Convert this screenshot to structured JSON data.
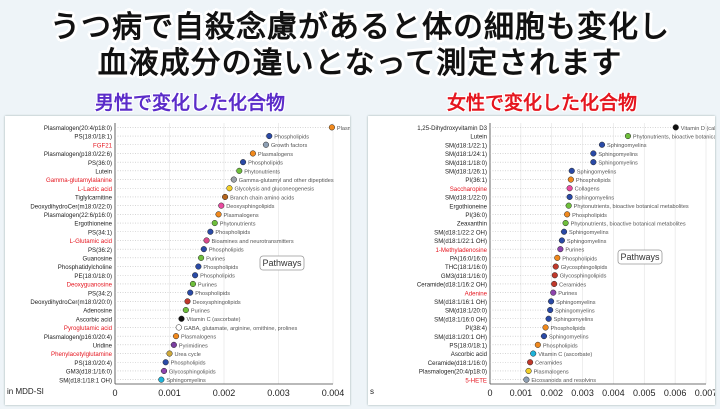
{
  "headline": {
    "line1": "うつ病で自殺念慮があると体の細胞も変化し",
    "line2": "血液成分の違いとなって測定されます"
  },
  "colors": {
    "male_title": "#5b2cc9",
    "female_title": "#e5161f",
    "highlight_label": "#e5161f"
  },
  "chart_data": [
    {
      "type": "scatter",
      "title": "男性で変化した化合物",
      "legend_box": "Pathways",
      "axis_label_partial": "in MDD-SI",
      "xlim": [
        0,
        0.004
      ],
      "xticks": [
        "0",
        "0.001",
        "0.002",
        "0.003",
        "0.004"
      ],
      "points": [
        {
          "name": "Plasmalogen(20:4/p18:0)",
          "value": 0.00398,
          "color": "#f0891e",
          "pathway": "Plasmalogens",
          "highlight": false
        },
        {
          "name": "PS(18:0/18:1)",
          "value": 0.00283,
          "color": "#2a4aa6",
          "pathway": "Phospholipids",
          "highlight": false
        },
        {
          "name": "FGF21",
          "value": 0.00277,
          "color": "#8fa0b4",
          "pathway": "Growth factors",
          "highlight": true
        },
        {
          "name": "Plasmalogen(p18:0/22:6)",
          "value": 0.00253,
          "color": "#f0891e",
          "pathway": "Plasmalogens",
          "highlight": false
        },
        {
          "name": "PS(36:0)",
          "value": 0.00235,
          "color": "#2a4aa6",
          "pathway": "Phospholipids",
          "highlight": false
        },
        {
          "name": "Lutein",
          "value": 0.00228,
          "color": "#6fbf3c",
          "pathway": "Phytonutrients",
          "highlight": false
        },
        {
          "name": "Gamma-glutamylalanine",
          "value": 0.00218,
          "color": "#9aa0a8",
          "pathway": "Gamma-glutamyl and other dipeptides",
          "highlight": true
        },
        {
          "name": "L-Lactic acid",
          "value": 0.0021,
          "color": "#f2cf2a",
          "pathway": "Glycolysis and gluconeogenesis",
          "highlight": true
        },
        {
          "name": "Tiglylcarnitine",
          "value": 0.00202,
          "color": "#b5651d",
          "pathway": "Branch chain amino acids",
          "highlight": false
        },
        {
          "name": "DeoxydihydroCer(m18:0/22:0)",
          "value": 0.00195,
          "color": "#e94ba0",
          "pathway": "Deoxysphingolipids",
          "highlight": false
        },
        {
          "name": "Plasmalogen(22:6/p16:0)",
          "value": 0.0019,
          "color": "#f0891e",
          "pathway": "Plasmalogens",
          "highlight": false
        },
        {
          "name": "Ergothioneine",
          "value": 0.00183,
          "color": "#6fbf3c",
          "pathway": "Phytonutrients",
          "highlight": false
        },
        {
          "name": "PS(34:1)",
          "value": 0.00175,
          "color": "#2a4aa6",
          "pathway": "Phospholipids",
          "highlight": false
        },
        {
          "name": "L-Glutamic acid",
          "value": 0.00168,
          "color": "#d94a8c",
          "pathway": "Bioamines and neurotransmitters",
          "highlight": true
        },
        {
          "name": "PS(36:2)",
          "value": 0.00163,
          "color": "#2a4aa6",
          "pathway": "Phospholipids",
          "highlight": false
        },
        {
          "name": "Guanosine",
          "value": 0.00158,
          "color": "#6fbf3c",
          "pathway": "Purines",
          "highlight": false
        },
        {
          "name": "Phosphatidylcholine",
          "value": 0.00153,
          "color": "#2a4aa6",
          "pathway": "Phospholipids",
          "highlight": false
        },
        {
          "name": "PE(18:0/18:0)",
          "value": 0.00147,
          "color": "#2a4aa6",
          "pathway": "Phospholipids",
          "highlight": false
        },
        {
          "name": "Deoxyguanosine",
          "value": 0.00143,
          "color": "#6fbf3c",
          "pathway": "Purines",
          "highlight": true
        },
        {
          "name": "PS(34:2)",
          "value": 0.00138,
          "color": "#2a4aa6",
          "pathway": "Phospholipids",
          "highlight": false
        },
        {
          "name": "DeoxydihydroCer(m18:0/20:0)",
          "value": 0.00133,
          "color": "#c0392b",
          "pathway": "Deoxysphingolipids",
          "highlight": false
        },
        {
          "name": "Adenosine",
          "value": 0.0013,
          "color": "#6fbf3c",
          "pathway": "Purines",
          "highlight": false
        },
        {
          "name": "Ascorbic acid",
          "value": 0.00122,
          "color": "#111111",
          "pathway": "Vitamin C (ascorbate)",
          "highlight": false
        },
        {
          "name": "Pyroglutamic acid",
          "value": 0.00117,
          "color": "#ffffff",
          "pathway": "GABA, glutamate, arginine, ornithine, prolines",
          "highlight": true
        },
        {
          "name": "Plasmalogen(p16:0/20:4)",
          "value": 0.00112,
          "color": "#f0891e",
          "pathway": "Plasmalogens",
          "highlight": false
        },
        {
          "name": "Uridine",
          "value": 0.00108,
          "color": "#7b3fa0",
          "pathway": "Pyrimidines",
          "highlight": false
        },
        {
          "name": "Phenylacetylglutamine",
          "value": 0.001,
          "color": "#cfa93a",
          "pathway": "Urea cycle",
          "highlight": true
        },
        {
          "name": "PS(18:0/20:4)",
          "value": 0.00093,
          "color": "#2a4aa6",
          "pathway": "Phospholipids",
          "highlight": false
        },
        {
          "name": "GM3(d18:1/16:0)",
          "value": 0.0009,
          "color": "#8e44ad",
          "pathway": "Glycosphingolipids",
          "highlight": false
        },
        {
          "name": "SM(d18:1/18:1 OH)",
          "value": 0.00085,
          "color": "#1fb3d9",
          "pathway": "Sphingomyelins",
          "highlight": false
        }
      ]
    },
    {
      "type": "scatter",
      "title": "女性で変化した化合物",
      "legend_box": "Pathways",
      "axis_label_partial": "s",
      "xlim": [
        0,
        0.007
      ],
      "xticks": [
        "0",
        "0.001",
        "0.002",
        "0.003",
        "0.004",
        "0.005",
        "0.006",
        "0.007"
      ],
      "points": [
        {
          "name": "1,25-Dihydroxyvitamin D3",
          "value": 0.00602,
          "color": "#111111",
          "pathway": "Vitamin D (calciferol)",
          "highlight": false
        },
        {
          "name": "Lutein",
          "value": 0.00447,
          "color": "#6fbf3c",
          "pathway": "Phytonutrients, bioactive botanical metabolites",
          "highlight": false
        },
        {
          "name": "SM(d18:1/22:1)",
          "value": 0.00363,
          "color": "#2a4aa6",
          "pathway": "Sphingomyelins",
          "highlight": false
        },
        {
          "name": "SM(d18:1/24:1)",
          "value": 0.00335,
          "color": "#2a4aa6",
          "pathway": "Sphingomyelins",
          "highlight": false
        },
        {
          "name": "SM(d18:1/18:0)",
          "value": 0.00335,
          "color": "#2a4aa6",
          "pathway": "Sphingomyelins",
          "highlight": false
        },
        {
          "name": "SM(d18:1/26:1)",
          "value": 0.00265,
          "color": "#2a4aa6",
          "pathway": "Sphingomyelins",
          "highlight": false
        },
        {
          "name": "PI(36:1)",
          "value": 0.00262,
          "color": "#f0891e",
          "pathway": "Phospholipids",
          "highlight": false
        },
        {
          "name": "Saccharopine",
          "value": 0.00258,
          "color": "#e94ba0",
          "pathway": "Collagens",
          "highlight": true
        },
        {
          "name": "SM(d18:1/22:0)",
          "value": 0.00258,
          "color": "#2a4aa6",
          "pathway": "Sphingomyelins",
          "highlight": false
        },
        {
          "name": "Ergothioneine",
          "value": 0.00255,
          "color": "#6fbf3c",
          "pathway": "Phytonutrients, bioactive botanical metabolites",
          "highlight": false
        },
        {
          "name": "PI(36:0)",
          "value": 0.0025,
          "color": "#f0891e",
          "pathway": "Phospholipids",
          "highlight": false
        },
        {
          "name": "Zeaxanthin",
          "value": 0.00245,
          "color": "#6fbf3c",
          "pathway": "Phytonutrients, bioactive botanical metabolites",
          "highlight": false
        },
        {
          "name": "SM(d18:1/22:2 OH)",
          "value": 0.0024,
          "color": "#2a4aa6",
          "pathway": "Sphingomyelins",
          "highlight": false
        },
        {
          "name": "SM(d18:1/22:1 OH)",
          "value": 0.00233,
          "color": "#2a4aa6",
          "pathway": "Sphingomyelins",
          "highlight": false
        },
        {
          "name": "1-Methyladenosine",
          "value": 0.00228,
          "color": "#8e44ad",
          "pathway": "Purines",
          "highlight": true
        },
        {
          "name": "PA(16:0/16:0)",
          "value": 0.00218,
          "color": "#f0891e",
          "pathway": "Phospholipids",
          "highlight": false
        },
        {
          "name": "THC(18:1/16:0)",
          "value": 0.00213,
          "color": "#c0392b",
          "pathway": "Glycosphingolipids",
          "highlight": false
        },
        {
          "name": "GM3(d18:1/16:0)",
          "value": 0.0021,
          "color": "#c0392b",
          "pathway": "Glycosphingolipids",
          "highlight": false
        },
        {
          "name": "Ceramide(d18:1/16:2 OH)",
          "value": 0.00208,
          "color": "#c0392b",
          "pathway": "Ceramides",
          "highlight": false
        },
        {
          "name": "Adenine",
          "value": 0.00205,
          "color": "#8e44ad",
          "pathway": "Purines",
          "highlight": true
        },
        {
          "name": "SM(d18:1/16:1 OH)",
          "value": 0.00198,
          "color": "#2a4aa6",
          "pathway": "Sphingomyelins",
          "highlight": false
        },
        {
          "name": "SM(d18:1/20:0)",
          "value": 0.00195,
          "color": "#2a4aa6",
          "pathway": "Sphingomyelins",
          "highlight": false
        },
        {
          "name": "SM(d18:1/16:0 OH)",
          "value": 0.0019,
          "color": "#2a4aa6",
          "pathway": "Sphingomyelins",
          "highlight": false
        },
        {
          "name": "PI(38:4)",
          "value": 0.0018,
          "color": "#f0891e",
          "pathway": "Phospholipids",
          "highlight": false
        },
        {
          "name": "SM(d18:1/20:1 OH)",
          "value": 0.00175,
          "color": "#2a4aa6",
          "pathway": "Sphingomyelins",
          "highlight": false
        },
        {
          "name": "PS(18:0/18:1)",
          "value": 0.00155,
          "color": "#f0891e",
          "pathway": "Phospholipids",
          "highlight": false
        },
        {
          "name": "Ascorbic acid",
          "value": 0.0014,
          "color": "#1fb3d9",
          "pathway": "Vitamin C (ascorbate)",
          "highlight": false
        },
        {
          "name": "Ceramide(d18:1/16:0)",
          "value": 0.0013,
          "color": "#c0392b",
          "pathway": "Ceramides",
          "highlight": false
        },
        {
          "name": "Plasmalogen(20:4/p18:0)",
          "value": 0.00125,
          "color": "#f2cf2a",
          "pathway": "Plasmalogens",
          "highlight": false
        },
        {
          "name": "5-HETE",
          "value": 0.00118,
          "color": "#8fa0b4",
          "pathway": "Eicosanoids and resolvins",
          "highlight": true
        }
      ]
    }
  ]
}
